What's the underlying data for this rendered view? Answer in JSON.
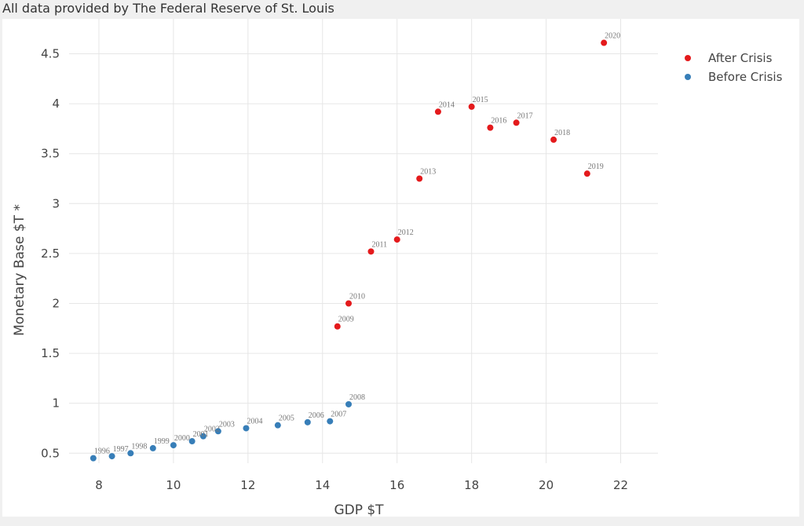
{
  "header": {
    "source_note": "All data provided by The Federal Reserve of St. Louis"
  },
  "chart_data": {
    "type": "scatter",
    "xlabel": "GDP $T",
    "ylabel": "Monetary Base $T *",
    "xlim": [
      7.2,
      23.0
    ],
    "ylim": [
      0.4,
      4.85
    ],
    "xticks": [
      "8",
      "10",
      "12",
      "14",
      "16",
      "18",
      "20",
      "22"
    ],
    "yticks": [
      "0.5",
      "1",
      "1.5",
      "2",
      "2.5",
      "3",
      "3.5",
      "4",
      "4.5"
    ],
    "grid": true,
    "legend_position": "top-right",
    "colors": {
      "after": "#e41a1c",
      "before": "#377eb8"
    },
    "series": [
      {
        "name": "After Crisis",
        "color": "#e41a1c",
        "points": [
          {
            "label": "2009",
            "x": 14.4,
            "y": 1.77
          },
          {
            "label": "2010",
            "x": 14.7,
            "y": 2.0
          },
          {
            "label": "2011",
            "x": 15.3,
            "y": 2.52
          },
          {
            "label": "2012",
            "x": 16.0,
            "y": 2.64
          },
          {
            "label": "2013",
            "x": 16.6,
            "y": 3.25
          },
          {
            "label": "2014",
            "x": 17.1,
            "y": 3.92
          },
          {
            "label": "2015",
            "x": 18.0,
            "y": 3.97
          },
          {
            "label": "2016",
            "x": 18.5,
            "y": 3.76
          },
          {
            "label": "2017",
            "x": 19.2,
            "y": 3.81
          },
          {
            "label": "2018",
            "x": 20.2,
            "y": 3.64
          },
          {
            "label": "2019",
            "x": 21.1,
            "y": 3.3
          },
          {
            "label": "2020",
            "x": 21.55,
            "y": 4.61
          }
        ]
      },
      {
        "name": "Before Crisis",
        "color": "#377eb8",
        "points": [
          {
            "label": "1996",
            "x": 7.85,
            "y": 0.45
          },
          {
            "label": "1997",
            "x": 8.35,
            "y": 0.47
          },
          {
            "label": "1998",
            "x": 8.85,
            "y": 0.5
          },
          {
            "label": "1999",
            "x": 9.45,
            "y": 0.55
          },
          {
            "label": "2000",
            "x": 10.0,
            "y": 0.58
          },
          {
            "label": "2001",
            "x": 10.5,
            "y": 0.62
          },
          {
            "label": "2002",
            "x": 10.8,
            "y": 0.67
          },
          {
            "label": "2003",
            "x": 11.2,
            "y": 0.72
          },
          {
            "label": "2004",
            "x": 11.95,
            "y": 0.75
          },
          {
            "label": "2005",
            "x": 12.8,
            "y": 0.78
          },
          {
            "label": "2006",
            "x": 13.6,
            "y": 0.81
          },
          {
            "label": "2007",
            "x": 14.2,
            "y": 0.82
          },
          {
            "label": "2008",
            "x": 14.7,
            "y": 0.99
          }
        ]
      }
    ],
    "legend": [
      {
        "label": "After Crisis",
        "color": "#e41a1c"
      },
      {
        "label": "Before Crisis",
        "color": "#377eb8"
      }
    ]
  }
}
